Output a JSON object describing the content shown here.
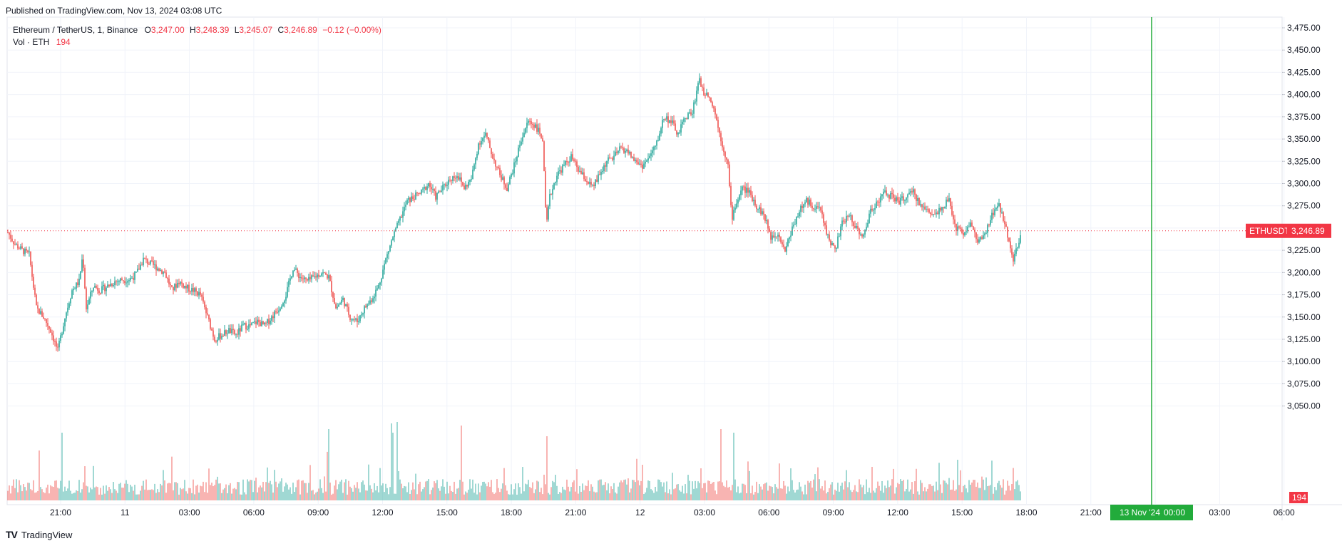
{
  "header": {
    "published": "Published on TradingView.com, Nov 13, 2024 03:08 UTC"
  },
  "legend": {
    "symbol": "Ethereum / TetherUS, 1, Binance",
    "o_label": "O",
    "open": "3,247.00",
    "h_label": "H",
    "high": "3,248.39",
    "l_label": "L",
    "low": "3,245.07",
    "c_label": "C",
    "close": "3,246.89",
    "change": "−0.12 (−0.00%)",
    "vol_label": "Vol · ETH",
    "vol_value": "194"
  },
  "price_tag": {
    "symbol": "ETHUSDT",
    "price": "3,246.89"
  },
  "volume_tag": "194",
  "time_marker": {
    "date": "13 Nov '24",
    "time": "00:00"
  },
  "footer": {
    "brand": "TradingView"
  },
  "colors": {
    "up": "#26a69a",
    "down": "#ef5350",
    "marker": "#22ab3b",
    "price": "#f23645"
  },
  "chart_data": {
    "type": "candlestick",
    "symbol": "ETHUSDT",
    "interval": "1",
    "y_ticks": [
      "3,475.00",
      "3,450.00",
      "3,425.00",
      "3,400.00",
      "3,375.00",
      "3,350.00",
      "3,325.00",
      "3,300.00",
      "3,275.00",
      "3,250.00",
      "3,225.00",
      "3,200.00",
      "3,175.00",
      "3,150.00",
      "3,125.00",
      "3,100.00",
      "3,075.00",
      "3,050.00"
    ],
    "x_ticks": [
      "21:00",
      "11",
      "03:00",
      "06:00",
      "09:00",
      "12:00",
      "15:00",
      "18:00",
      "21:00",
      "12",
      "03:00",
      "06:00",
      "09:00",
      "12:00",
      "15:00",
      "18:00",
      "21:00",
      "00:00",
      "03:00",
      "06:00"
    ],
    "ylim": [
      3040,
      3485
    ],
    "last_price": 3246.89,
    "series_close": [
      [
        0,
        3245
      ],
      [
        10,
        3232
      ],
      [
        20,
        3225
      ],
      [
        30,
        3220
      ],
      [
        40,
        3160
      ],
      [
        50,
        3150
      ],
      [
        60,
        3135
      ],
      [
        70,
        3112
      ],
      [
        80,
        3150
      ],
      [
        90,
        3180
      ],
      [
        100,
        3190
      ],
      [
        105,
        3220
      ],
      [
        110,
        3160
      ],
      [
        120,
        3185
      ],
      [
        130,
        3180
      ],
      [
        140,
        3185
      ],
      [
        150,
        3190
      ],
      [
        160,
        3192
      ],
      [
        170,
        3192
      ],
      [
        180,
        3198
      ],
      [
        190,
        3215
      ],
      [
        200,
        3210
      ],
      [
        210,
        3205
      ],
      [
        220,
        3200
      ],
      [
        230,
        3180
      ],
      [
        240,
        3190
      ],
      [
        250,
        3183
      ],
      [
        260,
        3180
      ],
      [
        270,
        3175
      ],
      [
        280,
        3150
      ],
      [
        290,
        3125
      ],
      [
        300,
        3130
      ],
      [
        310,
        3135
      ],
      [
        320,
        3130
      ],
      [
        330,
        3140
      ],
      [
        340,
        3140
      ],
      [
        350,
        3145
      ],
      [
        360,
        3140
      ],
      [
        370,
        3150
      ],
      [
        380,
        3160
      ],
      [
        390,
        3175
      ],
      [
        400,
        3205
      ],
      [
        410,
        3195
      ],
      [
        420,
        3190
      ],
      [
        430,
        3195
      ],
      [
        440,
        3200
      ],
      [
        450,
        3195
      ],
      [
        460,
        3160
      ],
      [
        470,
        3170
      ],
      [
        480,
        3150
      ],
      [
        490,
        3145
      ],
      [
        500,
        3160
      ],
      [
        510,
        3170
      ],
      [
        520,
        3185
      ],
      [
        530,
        3215
      ],
      [
        540,
        3240
      ],
      [
        550,
        3260
      ],
      [
        560,
        3280
      ],
      [
        570,
        3285
      ],
      [
        580,
        3290
      ],
      [
        590,
        3300
      ],
      [
        600,
        3285
      ],
      [
        610,
        3295
      ],
      [
        620,
        3305
      ],
      [
        630,
        3310
      ],
      [
        640,
        3295
      ],
      [
        650,
        3305
      ],
      [
        660,
        3345
      ],
      [
        670,
        3355
      ],
      [
        680,
        3330
      ],
      [
        690,
        3310
      ],
      [
        700,
        3295
      ],
      [
        710,
        3320
      ],
      [
        720,
        3350
      ],
      [
        730,
        3370
      ],
      [
        740,
        3365
      ],
      [
        750,
        3350
      ],
      [
        755,
        3250
      ],
      [
        760,
        3285
      ],
      [
        770,
        3310
      ],
      [
        780,
        3320
      ],
      [
        790,
        3330
      ],
      [
        800,
        3315
      ],
      [
        810,
        3305
      ],
      [
        820,
        3295
      ],
      [
        830,
        3310
      ],
      [
        840,
        3325
      ],
      [
        850,
        3330
      ],
      [
        860,
        3340
      ],
      [
        870,
        3335
      ],
      [
        880,
        3325
      ],
      [
        890,
        3320
      ],
      [
        900,
        3330
      ],
      [
        910,
        3345
      ],
      [
        920,
        3375
      ],
      [
        930,
        3370
      ],
      [
        940,
        3355
      ],
      [
        950,
        3375
      ],
      [
        960,
        3380
      ],
      [
        970,
        3420
      ],
      [
        975,
        3400
      ],
      [
        980,
        3405
      ],
      [
        990,
        3385
      ],
      [
        1000,
        3350
      ],
      [
        1010,
        3320
      ],
      [
        1015,
        3260
      ],
      [
        1020,
        3275
      ],
      [
        1030,
        3295
      ],
      [
        1040,
        3290
      ],
      [
        1050,
        3275
      ],
      [
        1060,
        3265
      ],
      [
        1070,
        3240
      ],
      [
        1080,
        3245
      ],
      [
        1090,
        3225
      ],
      [
        1100,
        3250
      ],
      [
        1110,
        3270
      ],
      [
        1120,
        3280
      ],
      [
        1130,
        3275
      ],
      [
        1140,
        3270
      ],
      [
        1150,
        3240
      ],
      [
        1160,
        3225
      ],
      [
        1170,
        3255
      ],
      [
        1180,
        3265
      ],
      [
        1190,
        3250
      ],
      [
        1200,
        3240
      ],
      [
        1210,
        3270
      ],
      [
        1220,
        3280
      ],
      [
        1230,
        3290
      ],
      [
        1240,
        3285
      ],
      [
        1250,
        3280
      ],
      [
        1260,
        3285
      ],
      [
        1270,
        3290
      ],
      [
        1280,
        3275
      ],
      [
        1290,
        3270
      ],
      [
        1300,
        3265
      ],
      [
        1310,
        3275
      ],
      [
        1320,
        3280
      ],
      [
        1330,
        3250
      ],
      [
        1340,
        3245
      ],
      [
        1350,
        3255
      ],
      [
        1360,
        3235
      ],
      [
        1370,
        3240
      ],
      [
        1380,
        3265
      ],
      [
        1390,
        3275
      ],
      [
        1400,
        3250
      ],
      [
        1410,
        3215
      ],
      [
        1420,
        3240
      ]
    ],
    "volume_note": "volume histogram under price"
  }
}
